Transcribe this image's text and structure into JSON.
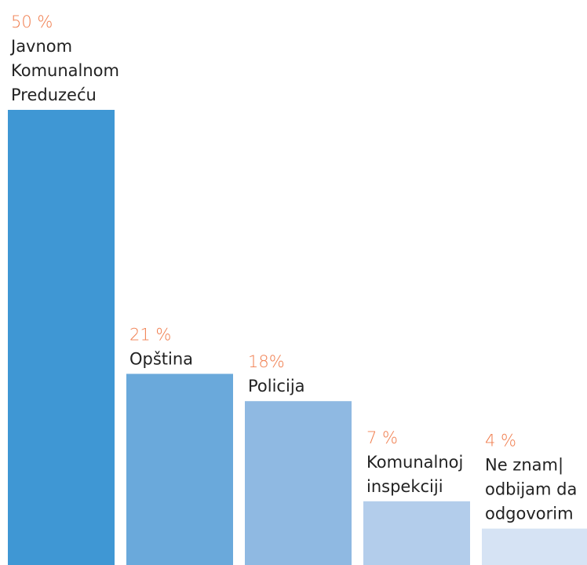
{
  "chart_data": {
    "type": "bar",
    "categories": [
      [
        "Javnom",
        "Komunalnom",
        "Preduzeću"
      ],
      [
        "Opština"
      ],
      [
        "Policija"
      ],
      [
        "Komunalnoj",
        "inspekciji"
      ],
      [
        "Ne znam|",
        "odbijam da",
        "odgovorim"
      ]
    ],
    "values": [
      50,
      21,
      18,
      7,
      4
    ],
    "value_labels": [
      "50 %",
      "21 %",
      "18%",
      "7 %",
      "4 %"
    ],
    "bar_colors": [
      "#3f97d4",
      "#6aa9db",
      "#8fb9e2",
      "#b3cdeb",
      "#d6e3f4"
    ],
    "value_label_color": "#f07c4c",
    "category_label_color": "#222222",
    "title": "",
    "xlabel": "",
    "ylabel": "",
    "ylim": [
      0,
      50
    ],
    "grid": false,
    "legend": "none"
  }
}
